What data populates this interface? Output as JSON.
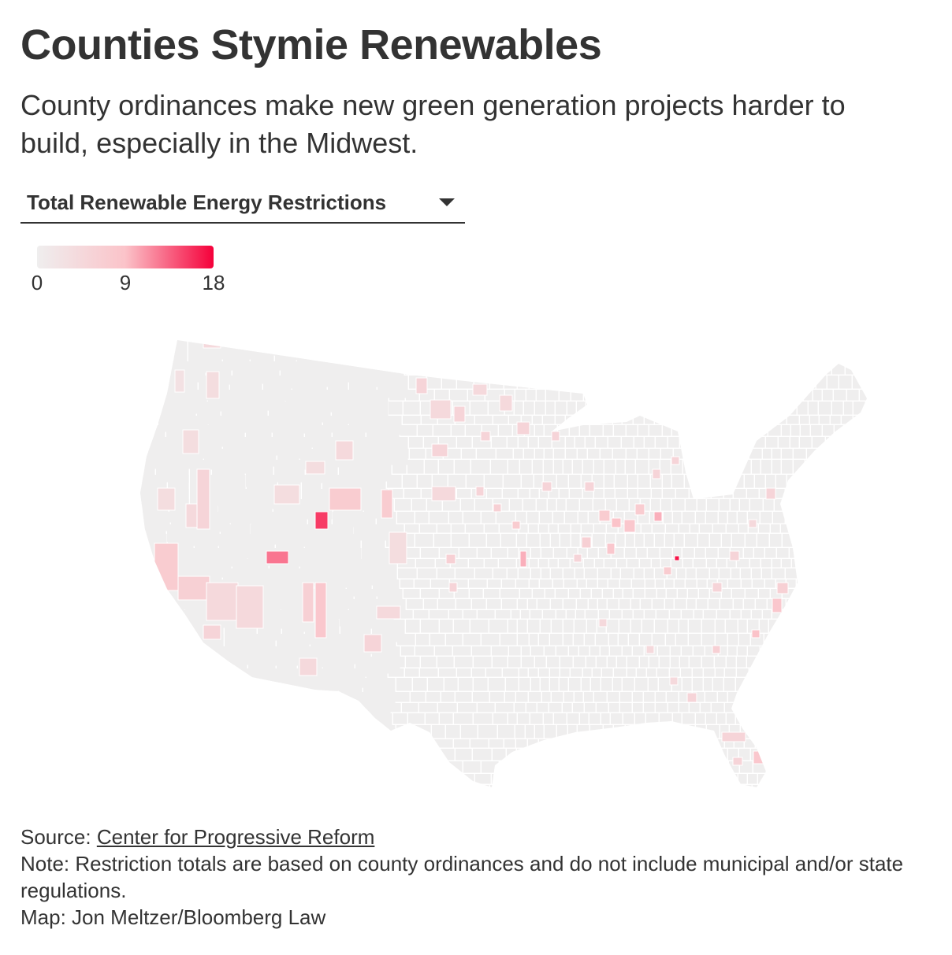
{
  "header": {
    "title": "Counties Stymie Renewables",
    "subtitle": "County ordinances make new green generation projects harder to build, especially in the Midwest."
  },
  "selector": {
    "selected": "Total Renewable Energy Restrictions",
    "icon": "caret-down-icon"
  },
  "legend": {
    "ticks": [
      "0",
      "9",
      "18"
    ],
    "min": 0,
    "mid": 9,
    "max": 18,
    "colors": {
      "low": "#efeeee",
      "mid": "#fbc3c9",
      "high": "#f5003a"
    }
  },
  "footer": {
    "source_prefix": "Source: ",
    "source_link": "Center for Progressive Reform",
    "note": "Note: Restriction totals are based on county ordinances and do not include municipal and/or state regulations.",
    "credit": "Map: Jon Meltzer/Bloomberg Law"
  }
}
